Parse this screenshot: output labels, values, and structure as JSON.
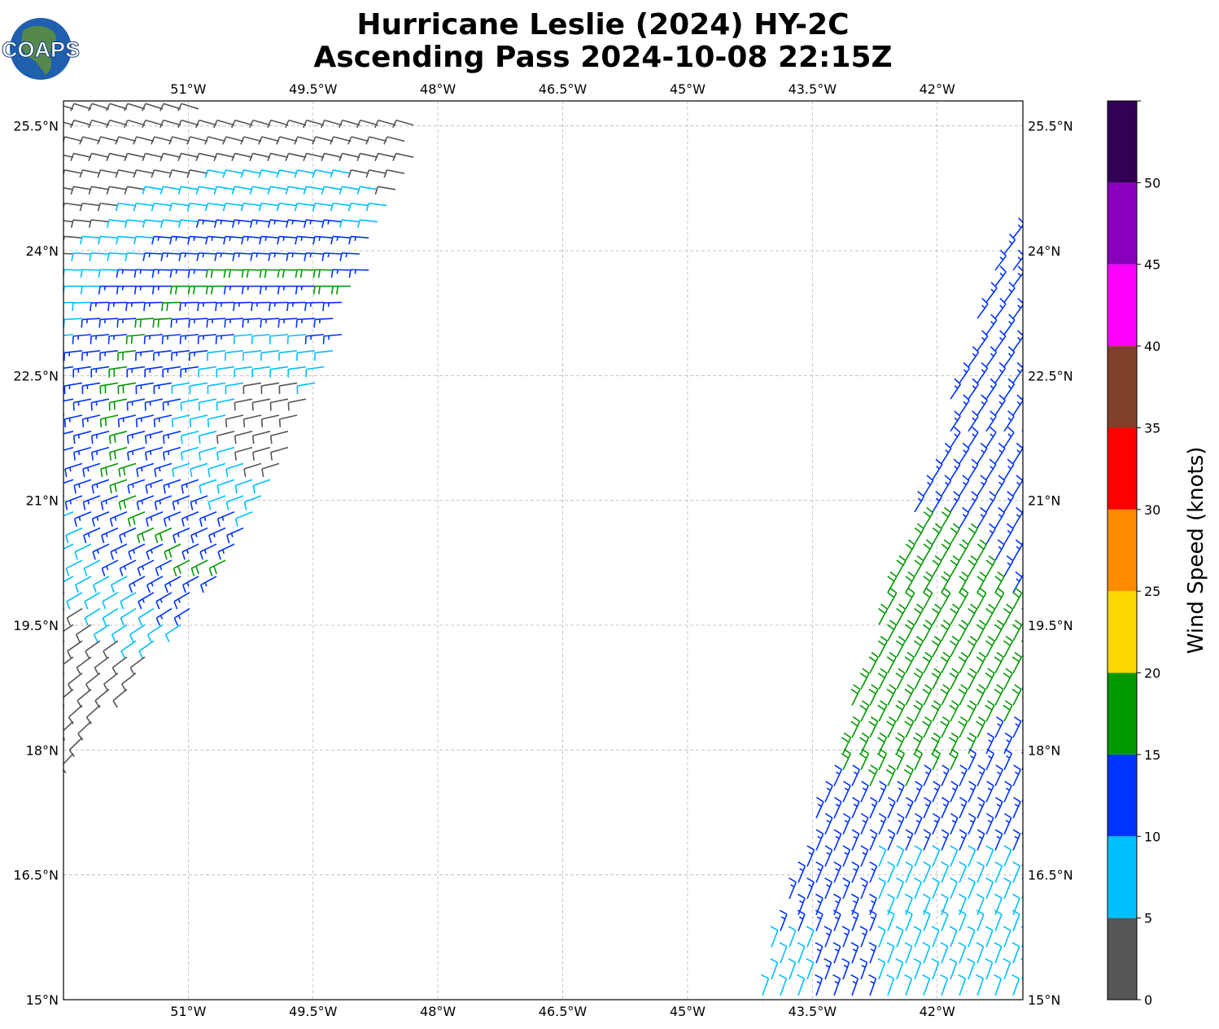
{
  "title": {
    "line1": "Hurricane Leslie (2024) HY-2C",
    "line2": "Ascending Pass 2024-10-08 22:15Z"
  },
  "logo": {
    "text": "COAPS",
    "colors": {
      "ocean": "#1f5fae",
      "land": "#5f8f3a"
    }
  },
  "map": {
    "lon_range": [
      -52.5,
      -40.97
    ],
    "lat_range": [
      15.0,
      25.8
    ],
    "lon_ticks": [
      {
        "value": -51.0,
        "label": "51°W"
      },
      {
        "value": -49.5,
        "label": "49.5°W"
      },
      {
        "value": -48.0,
        "label": "48°W"
      },
      {
        "value": -46.5,
        "label": "46.5°W"
      },
      {
        "value": -45.0,
        "label": "45°W"
      },
      {
        "value": -43.5,
        "label": "43.5°W"
      },
      {
        "value": -42.0,
        "label": "42°W"
      }
    ],
    "lat_ticks": [
      {
        "value": 15.0,
        "label": "15°N"
      },
      {
        "value": 16.5,
        "label": "16.5°N"
      },
      {
        "value": 18.0,
        "label": "18°N"
      },
      {
        "value": 19.5,
        "label": "19.5°N"
      },
      {
        "value": 21.0,
        "label": "21°N"
      },
      {
        "value": 22.5,
        "label": "22.5°N"
      },
      {
        "value": 24.0,
        "label": "24°N"
      },
      {
        "value": 25.5,
        "label": "25.5°N"
      }
    ],
    "grid": true
  },
  "colorbar": {
    "label": "Wind Speed (knots)",
    "ticks": [
      "0",
      "5",
      "10",
      "15",
      "20",
      "25",
      "30",
      "35",
      "40",
      "45",
      "50"
    ],
    "bins": [
      {
        "min": 0,
        "max": 5,
        "color": "#565656"
      },
      {
        "min": 5,
        "max": 10,
        "color": "#00bfff"
      },
      {
        "min": 10,
        "max": 15,
        "color": "#0033ff"
      },
      {
        "min": 15,
        "max": 20,
        "color": "#009900"
      },
      {
        "min": 20,
        "max": 25,
        "color": "#ffd700"
      },
      {
        "min": 25,
        "max": 30,
        "color": "#ff8c00"
      },
      {
        "min": 30,
        "max": 35,
        "color": "#ff0000"
      },
      {
        "min": 35,
        "max": 40,
        "color": "#80402a"
      },
      {
        "min": 40,
        "max": 45,
        "color": "#ff00ff"
      },
      {
        "min": 45,
        "max": 50,
        "color": "#8800bb"
      },
      {
        "min": 50,
        "max": 55,
        "color": "#330055"
      }
    ]
  },
  "swaths": [
    {
      "name": "west",
      "corner_lons": [
        -52.5,
        -48.1,
        -50.0,
        -52.5
      ],
      "corner_lats": [
        25.8,
        25.55,
        20.9,
        17.7
      ]
    },
    {
      "name": "east",
      "corner_lons": [
        -44.2,
        -40.97,
        -40.97,
        -41.2
      ],
      "corner_lats": [
        15.0,
        15.0,
        24.2,
        24.25
      ]
    }
  ]
}
